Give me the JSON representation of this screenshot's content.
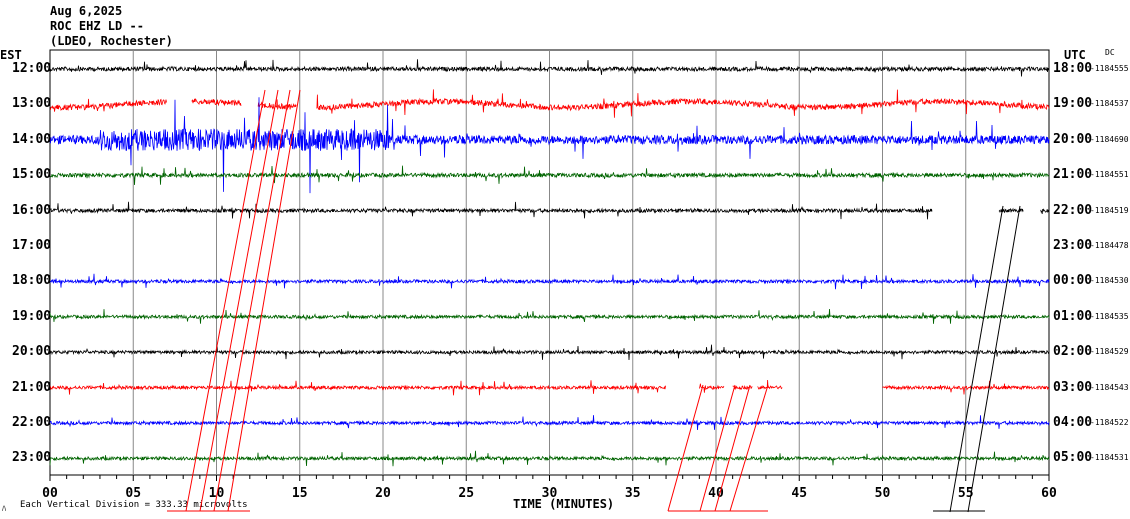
{
  "header": {
    "date": "Aug 6,2025",
    "station": "ROC EHZ LD --",
    "network": "(LDEO, Rochester)"
  },
  "left_tz": "EST",
  "right_tz": "UTC",
  "dc_label": "DC",
  "footer": {
    "scale_text": "Each Vertical Division =  333.33 microvolts",
    "corner_mark": "ﾊ"
  },
  "chart_data": {
    "type": "line",
    "title": "ROC EHZ LD -- helicorder",
    "xlabel": "TIME (MINUTES)",
    "xlim": [
      0,
      60
    ],
    "x_ticks": [
      "00",
      "05",
      "10",
      "15",
      "20",
      "25",
      "30",
      "35",
      "40",
      "45",
      "50",
      "55",
      "60"
    ],
    "grid": true,
    "rows": [
      {
        "est": "12:00",
        "utc": "18:00",
        "dc": "-1184555",
        "color": "#000000",
        "amp": 1.0,
        "segments": [
          [
            0,
            60
          ]
        ]
      },
      {
        "est": "13:00",
        "utc": "19:00",
        "dc": "-1184537",
        "color": "#ff0000",
        "amp": 1.4,
        "segments": [
          [
            0,
            7
          ],
          [
            8.5,
            11.5
          ],
          [
            12.5,
            14.8
          ],
          [
            16,
            60
          ]
        ]
      },
      {
        "est": "14:00",
        "utc": "20:00",
        "dc": "-1184690",
        "color": "#0000ff",
        "amp": 2.2,
        "segments": [
          [
            0,
            60
          ]
        ]
      },
      {
        "est": "15:00",
        "utc": "21:00",
        "dc": "-1184551",
        "color": "#006400",
        "amp": 1.0,
        "segments": [
          [
            0,
            60
          ]
        ]
      },
      {
        "est": "16:00",
        "utc": "22:00",
        "dc": "-1184519",
        "color": "#000000",
        "amp": 0.9,
        "segments": [
          [
            0,
            53
          ],
          [
            57,
            58.5
          ],
          [
            59.5,
            60
          ]
        ]
      },
      {
        "est": "17:00",
        "utc": "23:00",
        "dc": "-1184478",
        "color": "#ff0000",
        "amp": 0,
        "segments": []
      },
      {
        "est": "18:00",
        "utc": "00:00",
        "dc": "-1184530",
        "color": "#0000ff",
        "amp": 0.8,
        "segments": [
          [
            0,
            60
          ]
        ]
      },
      {
        "est": "19:00",
        "utc": "01:00",
        "dc": "-1184535",
        "color": "#006400",
        "amp": 0.8,
        "segments": [
          [
            0,
            60
          ]
        ]
      },
      {
        "est": "20:00",
        "utc": "02:00",
        "dc": "-1184529",
        "color": "#000000",
        "amp": 0.8,
        "segments": [
          [
            0,
            60
          ]
        ]
      },
      {
        "est": "21:00",
        "utc": "03:00",
        "dc": "-1184543",
        "color": "#ff0000",
        "amp": 0.8,
        "segments": [
          [
            0,
            37
          ],
          [
            39,
            40.5
          ],
          [
            41,
            42.2
          ],
          [
            42.5,
            44
          ],
          [
            50,
            60
          ]
        ]
      },
      {
        "est": "22:00",
        "utc": "04:00",
        "dc": "-1184522",
        "color": "#0000ff",
        "amp": 0.8,
        "segments": [
          [
            0,
            60
          ]
        ]
      },
      {
        "est": "23:00",
        "utc": "05:00",
        "dc": "-1184531",
        "color": "#006400",
        "amp": 0.8,
        "segments": [
          [
            0,
            60
          ]
        ]
      }
    ]
  }
}
